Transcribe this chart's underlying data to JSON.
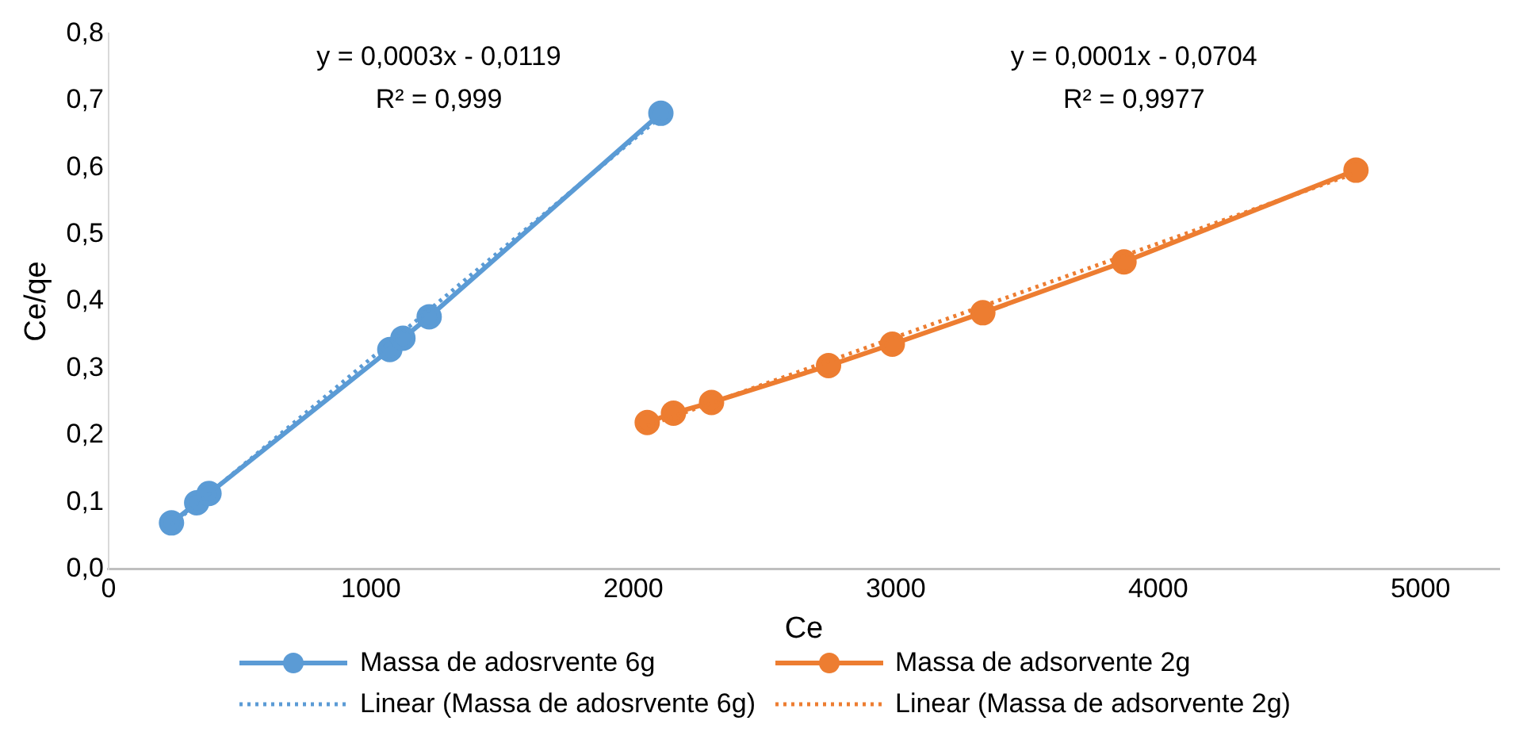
{
  "chart_data": {
    "type": "line",
    "xlabel": "Ce",
    "ylabel": "Ce/qe",
    "xlim": [
      0,
      5300
    ],
    "xticks": [
      0,
      1000,
      2000,
      3000,
      4000,
      5000
    ],
    "ylim": [
      0,
      0.8
    ],
    "yticks": [
      {
        "value": 0,
        "label": "0,0"
      },
      {
        "value": 0.1,
        "label": "0,1"
      },
      {
        "value": 0.2,
        "label": "0,2"
      },
      {
        "value": 0.3,
        "label": "0,3"
      },
      {
        "value": 0.4,
        "label": "0,4"
      },
      {
        "value": 0.5,
        "label": "0,5"
      },
      {
        "value": 0.6,
        "label": "0,6"
      },
      {
        "value": 0.7,
        "label": "0,7"
      },
      {
        "value": 0.8,
        "label": "0,8"
      }
    ],
    "grid": false,
    "legend": "bottom",
    "marker": "circle",
    "series": [
      {
        "name": "Massa de adosrvente 6g",
        "color": "#5b9bd5",
        "x": [
          240,
          336,
          383,
          1072,
          1122,
          1222,
          2105
        ],
        "values": [
          0.069,
          0.099,
          0.113,
          0.328,
          0.345,
          0.377,
          0.681
        ]
      },
      {
        "name": "Massa de adsorvente 2g",
        "color": "#ed7d31",
        "x": [
          2053,
          2153,
          2298,
          2744,
          2987,
          3332,
          3870,
          4754
        ],
        "values": [
          0.219,
          0.233,
          0.249,
          0.304,
          0.336,
          0.383,
          0.459,
          0.596
        ]
      },
      {
        "name": "Linear (Massa de adosrvente 6g)",
        "color": "#5b9bd5",
        "line_style": "dotted",
        "marker": "none",
        "x": [
          240,
          2105
        ],
        "values": [
          0.066,
          0.676
        ]
      },
      {
        "name": "Linear (Massa de adsorvente 2g)",
        "color": "#ed7d31",
        "line_style": "dotted",
        "marker": "none",
        "x": [
          2053,
          4754
        ],
        "values": [
          0.214,
          0.592
        ]
      }
    ],
    "annotations": [
      "y = 0,0003x - 0,0119",
      "R² = 0,999",
      "y = 0,0001x - 0,0704",
      "R² = 0,9977"
    ]
  }
}
